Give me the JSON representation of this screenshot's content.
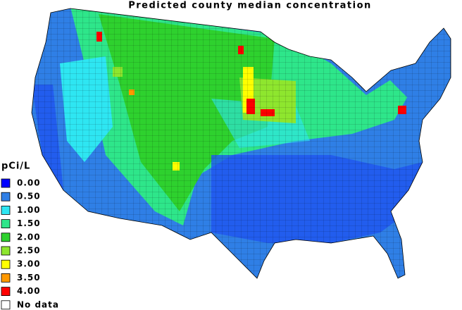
{
  "title": "Predicted county median concentration",
  "legend": {
    "title": "pCi/L",
    "items": [
      {
        "label": "0.00",
        "color": "#0000ff"
      },
      {
        "label": "0.50",
        "color": "#2f7fe6"
      },
      {
        "label": "1.00",
        "color": "#2ee6f2"
      },
      {
        "label": "1.50",
        "color": "#2ee68a"
      },
      {
        "label": "2.00",
        "color": "#2ed12e"
      },
      {
        "label": "2.50",
        "color": "#8ee62e"
      },
      {
        "label": "3.00",
        "color": "#ffff00"
      },
      {
        "label": "3.50",
        "color": "#ff9900"
      },
      {
        "label": "4.00",
        "color": "#ff0000"
      },
      {
        "label": "No data",
        "color": "#ffffff"
      }
    ]
  }
}
